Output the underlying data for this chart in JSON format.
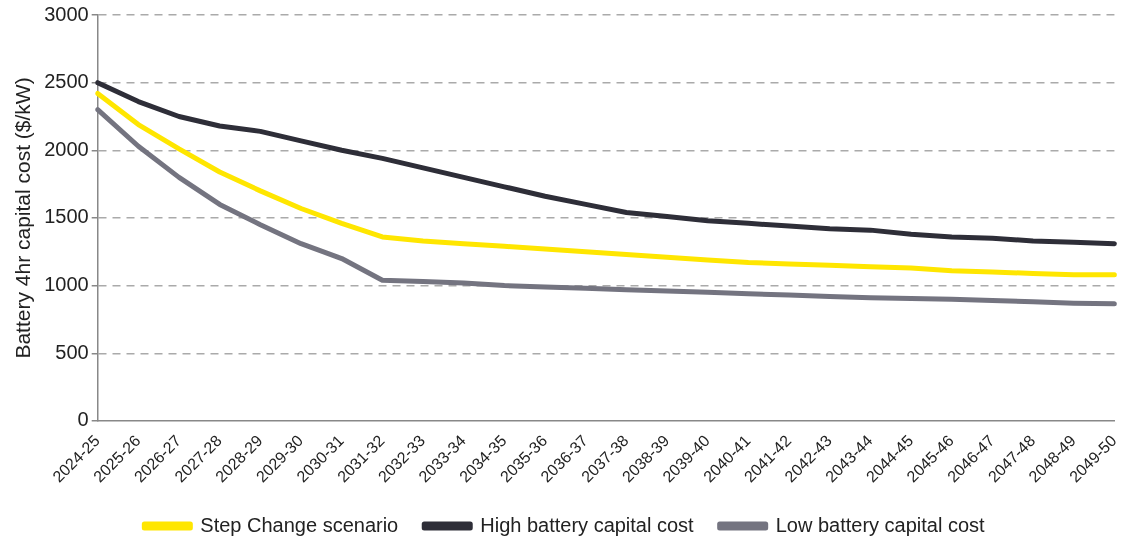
{
  "chart_data": {
    "type": "line",
    "ylabel": "Battery 4hr capital cost ($/kW)",
    "categories": [
      "2024-25",
      "2025-26",
      "2026-27",
      "2027-28",
      "2028-29",
      "2029-30",
      "2030-31",
      "2031-32",
      "2032-33",
      "2033-34",
      "2034-35",
      "2035-36",
      "2036-37",
      "2037-38",
      "2038-39",
      "2039-40",
      "2040-41",
      "2041-42",
      "2042-43",
      "2043-44",
      "2044-45",
      "2045-46",
      "2046-47",
      "2047-48",
      "2048-49",
      "2049-50"
    ],
    "series": [
      {
        "name": "Step Change scenario",
        "color": "#ffe600",
        "values": [
          2420,
          2190,
          2010,
          1840,
          1700,
          1570,
          1460,
          1360,
          1330,
          1310,
          1290,
          1270,
          1250,
          1230,
          1210,
          1190,
          1170,
          1160,
          1150,
          1140,
          1130,
          1110,
          1100,
          1090,
          1080,
          1080
        ]
      },
      {
        "name": "High battery capital cost",
        "color": "#2e2e38",
        "values": [
          2500,
          2360,
          2250,
          2180,
          2140,
          2070,
          2000,
          1940,
          1870,
          1800,
          1730,
          1660,
          1600,
          1540,
          1510,
          1480,
          1460,
          1440,
          1420,
          1410,
          1380,
          1360,
          1350,
          1330,
          1320,
          1310
        ]
      },
      {
        "name": "Low battery capital cost",
        "color": "#747480",
        "values": [
          2300,
          2030,
          1800,
          1600,
          1450,
          1310,
          1200,
          1040,
          1030,
          1020,
          1000,
          990,
          980,
          970,
          960,
          950,
          940,
          930,
          920,
          910,
          905,
          900,
          890,
          880,
          870,
          865
        ]
      }
    ],
    "ylim": [
      0,
      3000
    ],
    "yticks": [
      0,
      500,
      1000,
      1500,
      2000,
      2500,
      3000
    ],
    "grid": "y",
    "legend": "bottom",
    "marker": "none",
    "line_style": "solid"
  }
}
